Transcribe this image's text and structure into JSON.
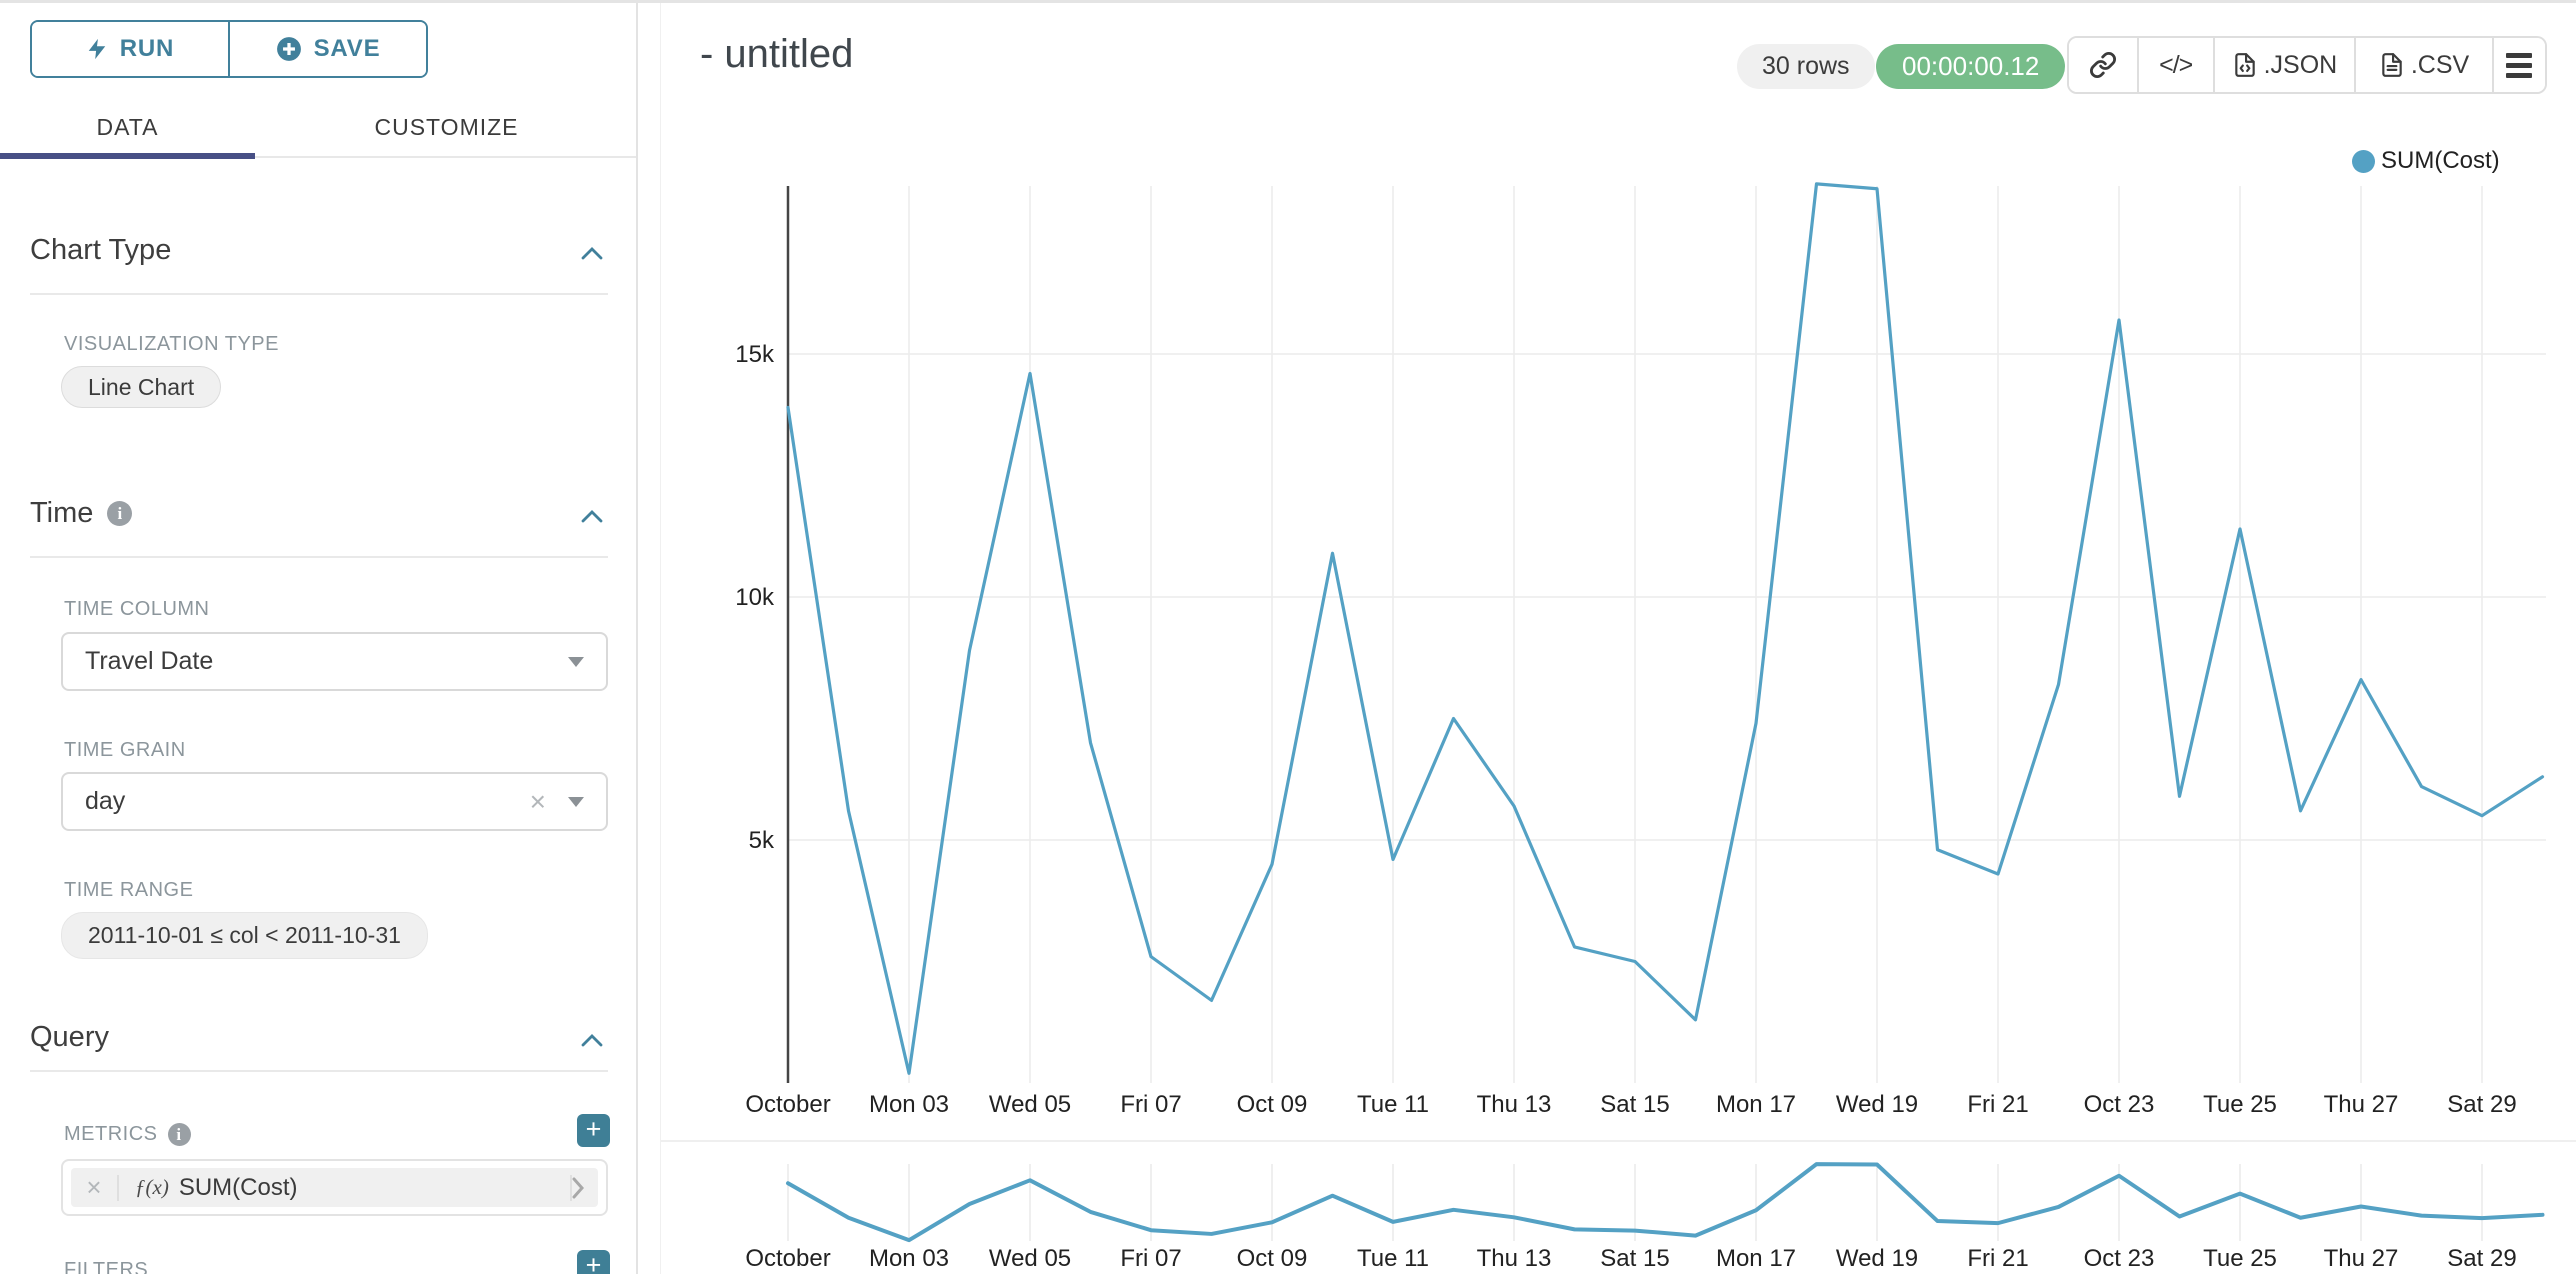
{
  "sidebar": {
    "run_label": "RUN",
    "save_label": "SAVE",
    "tabs": [
      {
        "label": "DATA"
      },
      {
        "label": "CUSTOMIZE"
      }
    ],
    "chart_type": {
      "title": "Chart Type",
      "viz_label": "VISUALIZATION TYPE",
      "viz_value": "Line Chart"
    },
    "time": {
      "title": "Time",
      "col_label": "TIME COLUMN",
      "col_value": "Travel Date",
      "grain_label": "TIME GRAIN",
      "grain_value": "day",
      "range_label": "TIME RANGE",
      "range_value": "2011-10-01 ≤ col < 2011-10-31"
    },
    "query": {
      "title": "Query",
      "metrics_label": "METRICS",
      "metric_fx": "ƒ(x)",
      "metric_value": "SUM(Cost)",
      "filters_label": "FILTERS"
    }
  },
  "header": {
    "title": "- untitled",
    "rows_badge": "30 rows",
    "timer_badge": "00:00:00.12",
    "code_label": "</>",
    "json_label": ".JSON",
    "csv_label": ".CSV"
  },
  "legend": {
    "label": "SUM(Cost)"
  },
  "colors": {
    "accent": "#41809b",
    "accent_fill": "#3f7f96",
    "tab_active_underline": "#474f85",
    "line": "#54a1c4",
    "timer_green": "#77bd8a",
    "grid": "#ececec",
    "grid_light": "#e4e4e4",
    "axis": "#454545",
    "pill_bg": "#f0f0f0",
    "label_gray": "#8c969c"
  },
  "chart_data": {
    "type": "line",
    "title": "",
    "legend_position": "top-right",
    "grid": true,
    "x_tick_labels": [
      "October",
      "Mon 03",
      "Wed 05",
      "Fri 07",
      "Oct 09",
      "Tue 11",
      "Thu 13",
      "Sat 15",
      "Mon 17",
      "Wed 19",
      "Fri 21",
      "Oct 23",
      "Tue 25",
      "Thu 27",
      "Sat 29"
    ],
    "x_tick_every": 2,
    "n_points": 30,
    "xlabel": "",
    "ylabel": "",
    "ylim": [
      0,
      18600
    ],
    "yticks": [
      {
        "v": 5000,
        "label": "5k"
      },
      {
        "v": 10000,
        "label": "10k"
      },
      {
        "v": 15000,
        "label": "15k"
      }
    ],
    "series": [
      {
        "name": "SUM(Cost)",
        "color": "#54a1c4",
        "values": [
          13900,
          5600,
          200,
          8900,
          14600,
          7000,
          2600,
          1700,
          4500,
          10900,
          4600,
          7500,
          5700,
          2800,
          2500,
          1300,
          7400,
          18500,
          18400,
          4800,
          4300,
          8200,
          15700,
          5900,
          11400,
          5600,
          8300,
          6100,
          5500,
          6300
        ]
      }
    ],
    "has_preview_strip": true
  }
}
